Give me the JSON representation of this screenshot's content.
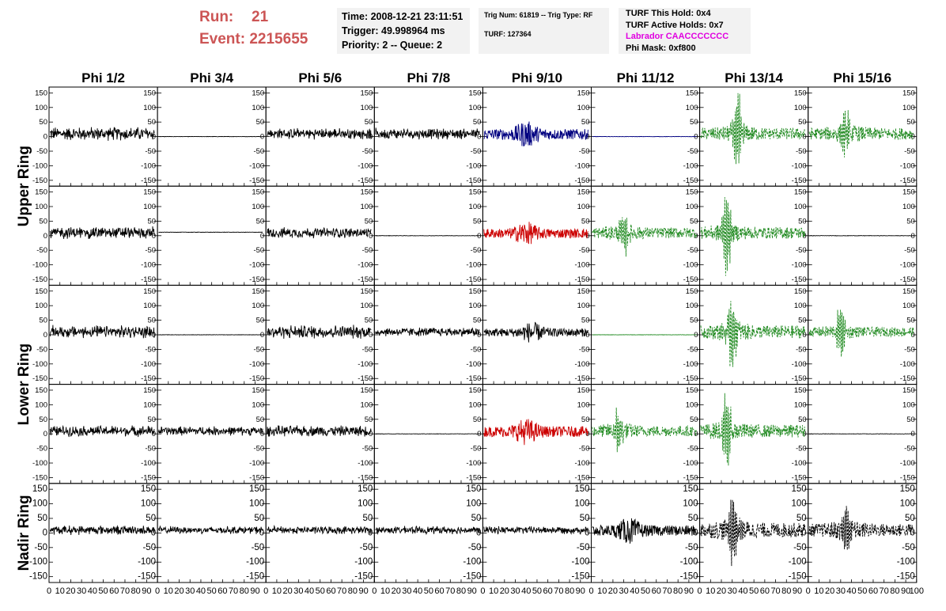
{
  "header": {
    "run_label": "Run:",
    "run_value": "21",
    "event_label": "Event:",
    "event_value": "2215655",
    "time": "Time: 2008-12-21 23:11:51",
    "trigger": "Trigger: 49.998964 ms",
    "priority": "Priority: 2 -- Queue: 2",
    "trig_info": "Trig Num: 61819 -- Trig Type: RF",
    "turf": "TURF: 127364",
    "turf_this_hold": "TURF This Hold: 0x4",
    "turf_active_holds": "TURF Active Holds: 0x7",
    "labrador": "Labrador CAACCCCCCC",
    "phi_mask": "Phi Mask: 0xf800"
  },
  "colors": {
    "title_red": "#cc5555",
    "labrador": "#e000e0",
    "black_trace": "#000000",
    "blue_trace": "#000080",
    "red_trace": "#cc0000",
    "green_trace": "#228b22"
  },
  "chart_data": {
    "type": "line",
    "title": "",
    "columns": [
      "Phi 1/2",
      "Phi 3/4",
      "Phi 5/6",
      "Phi 7/8",
      "Phi 9/10",
      "Phi 11/12",
      "Phi 13/14",
      "Phi 15/16"
    ],
    "rows": [
      "Upper Ring",
      "Upper Ring",
      "Lower Ring",
      "Lower Ring",
      "Nadir Ring"
    ],
    "row_labels": [
      "Upper Ring",
      "Lower Ring",
      "Nadir Ring"
    ],
    "xlim": [
      0,
      100
    ],
    "ylim": [
      -170,
      170
    ],
    "y_ticks": [
      -150,
      -100,
      -50,
      0,
      50,
      100,
      150
    ],
    "x_ticks": [
      0,
      10,
      20,
      30,
      40,
      50,
      60,
      70,
      80,
      90,
      100
    ],
    "x_tick_labels": [
      "0",
      "10",
      "20",
      "30",
      "40",
      "50",
      "60",
      "70",
      "80",
      "90",
      "100"
    ],
    "y_tick_labels": [
      "-150",
      "-100",
      "-50",
      "0",
      "50",
      "100",
      "150"
    ],
    "panels": [
      [
        {
          "style": "noise",
          "amp": 18,
          "color": "black"
        },
        {
          "style": "flat",
          "offset": 0,
          "color": "black"
        },
        {
          "style": "noise",
          "amp": 14,
          "color": "black"
        },
        {
          "style": "noise",
          "amp": 14,
          "color": "black"
        },
        {
          "style": "burst",
          "amp": 18,
          "peak": 40,
          "color": "blue"
        },
        {
          "style": "flat",
          "offset": 0,
          "color": "blue"
        },
        {
          "style": "dashpulse",
          "amp": 20,
          "peak": 35,
          "peakamp": 130,
          "color": "green"
        },
        {
          "style": "dashpulse",
          "amp": 20,
          "peak": 35,
          "peakamp": 70,
          "color": "green"
        }
      ],
      [
        {
          "style": "noise",
          "amp": 16,
          "color": "black"
        },
        {
          "style": "flat",
          "offset": 12,
          "color": "black"
        },
        {
          "style": "noise",
          "amp": 14,
          "color": "black"
        },
        {
          "style": "flat",
          "offset": 0,
          "color": "black"
        },
        {
          "style": "burst",
          "amp": 16,
          "peak": 40,
          "color": "red"
        },
        {
          "style": "dashpulse",
          "amp": 18,
          "peak": 30,
          "peakamp": 75,
          "color": "green"
        },
        {
          "style": "dashpulse",
          "amp": 20,
          "peak": 25,
          "peakamp": 130,
          "color": "green"
        },
        {
          "style": "flat",
          "offset": 0,
          "color": "black"
        }
      ],
      [
        {
          "style": "noise",
          "amp": 16,
          "color": "black"
        },
        {
          "style": "flat",
          "offset": 0,
          "color": "black"
        },
        {
          "style": "noise",
          "amp": 18,
          "color": "black"
        },
        {
          "style": "noise",
          "amp": 12,
          "color": "black"
        },
        {
          "style": "burst",
          "amp": 14,
          "peak": 45,
          "color": "black"
        },
        {
          "style": "flat",
          "offset": 0,
          "color": "green"
        },
        {
          "style": "dashpulse",
          "amp": 22,
          "peak": 30,
          "peakamp": 120,
          "color": "green"
        },
        {
          "style": "dashpulse",
          "amp": 16,
          "peak": 30,
          "peakamp": 85,
          "color": "green"
        }
      ],
      [
        {
          "style": "noise",
          "amp": 14,
          "color": "black"
        },
        {
          "style": "noise",
          "amp": 12,
          "color": "black"
        },
        {
          "style": "noise",
          "amp": 14,
          "color": "black"
        },
        {
          "style": "flat",
          "offset": 0,
          "color": "black"
        },
        {
          "style": "burst",
          "amp": 18,
          "peak": 40,
          "color": "red"
        },
        {
          "style": "dashpulse",
          "amp": 18,
          "peak": 25,
          "peakamp": 70,
          "color": "green"
        },
        {
          "style": "dashpulse",
          "amp": 22,
          "peak": 25,
          "peakamp": 120,
          "color": "green"
        },
        {
          "style": "flat",
          "offset": 0,
          "color": "black"
        }
      ],
      [
        {
          "style": "noise",
          "amp": 12,
          "color": "black"
        },
        {
          "style": "noise",
          "amp": 10,
          "color": "black"
        },
        {
          "style": "noise",
          "amp": 10,
          "color": "black"
        },
        {
          "style": "noise",
          "amp": 10,
          "color": "black"
        },
        {
          "style": "noise",
          "amp": 10,
          "color": "black"
        },
        {
          "style": "burst",
          "amp": 18,
          "peak": 35,
          "color": "black"
        },
        {
          "style": "dashpulse",
          "amp": 25,
          "peak": 30,
          "peakamp": 120,
          "color": "black"
        },
        {
          "style": "dashpulse",
          "amp": 22,
          "peak": 35,
          "peakamp": 90,
          "color": "black"
        }
      ]
    ]
  }
}
